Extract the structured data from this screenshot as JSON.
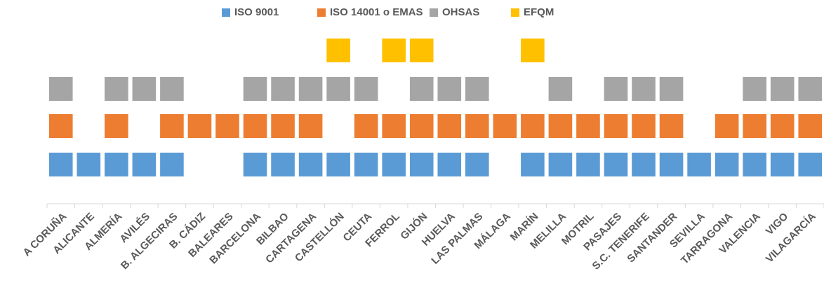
{
  "chart_data": {
    "type": "presence",
    "categories": [
      "A CORUÑA",
      "ALICANTE",
      "ALMERÍA",
      "AVILÉS",
      "B. ALGECIRAS",
      "B. CÁDIZ",
      "BALEARES",
      "BARCELONA",
      "BILBAO",
      "CARTAGENA",
      "CASTELLÓN",
      "CEUTA",
      "FERROL",
      "GIJÓN",
      "HUELVA",
      "LAS PALMAS",
      "MÁLAGA",
      "MARÍN",
      "MELILLA",
      "MOTRIL",
      "PASAJES",
      "S.C. TENERIFE",
      "SANTANDER",
      "SEVILLA",
      "TARRAGONA",
      "VALENCIA",
      "VIGO",
      "VILAGARCÍA"
    ],
    "series": [
      {
        "name": "ISO 9001",
        "color": "#5b9bd5",
        "values": [
          1,
          1,
          1,
          1,
          1,
          null,
          null,
          1,
          1,
          1,
          1,
          1,
          1,
          1,
          1,
          1,
          null,
          1,
          1,
          1,
          1,
          1,
          1,
          1,
          1,
          1,
          1,
          1
        ]
      },
      {
        "name": "ISO 14001 o EMAS",
        "color": "#ed7d31",
        "values": [
          1,
          null,
          1,
          null,
          1,
          1,
          1,
          1,
          1,
          1,
          null,
          1,
          1,
          1,
          1,
          1,
          1,
          1,
          1,
          1,
          1,
          1,
          1,
          null,
          1,
          1,
          1,
          1
        ]
      },
      {
        "name": "OHSAS",
        "color": "#a5a5a5",
        "values": [
          1,
          null,
          1,
          1,
          1,
          null,
          null,
          1,
          1,
          1,
          1,
          1,
          null,
          1,
          1,
          1,
          null,
          null,
          1,
          null,
          1,
          1,
          1,
          null,
          null,
          1,
          1,
          1
        ]
      },
      {
        "name": "EFQM",
        "color": "#ffc000",
        "values": [
          null,
          null,
          null,
          null,
          null,
          null,
          null,
          null,
          null,
          null,
          1,
          null,
          1,
          1,
          null,
          null,
          null,
          1,
          null,
          null,
          null,
          null,
          null,
          null,
          null,
          null,
          null,
          null
        ]
      }
    ],
    "legend": "top"
  }
}
